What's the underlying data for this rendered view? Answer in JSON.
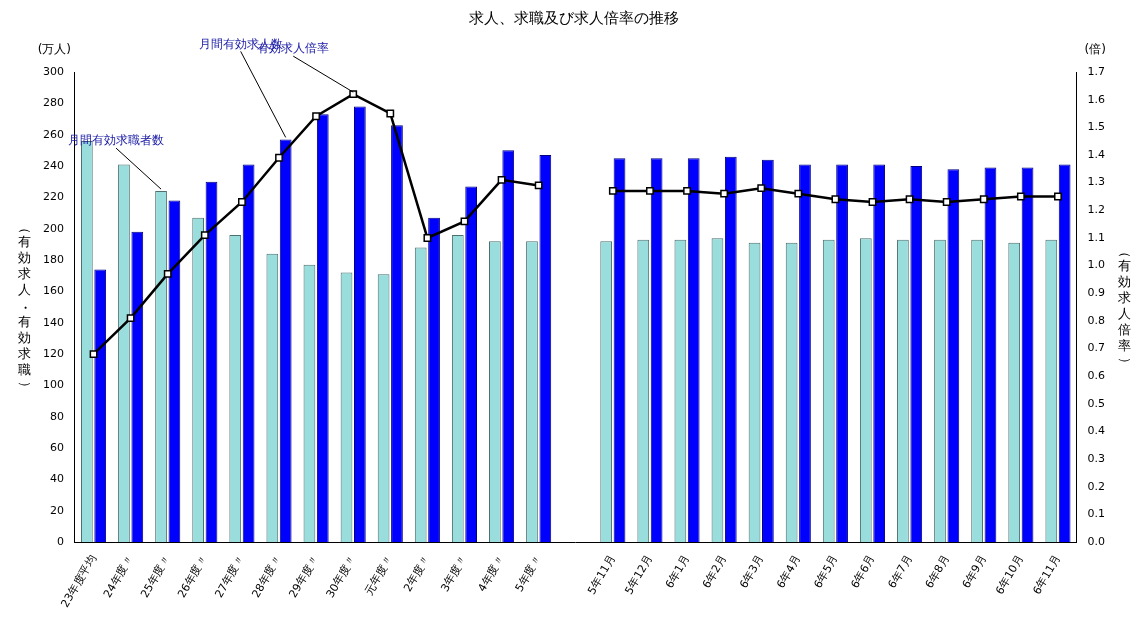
{
  "chart_data": {
    "type": "bar",
    "title": "求人、求職及び求人倍率の推移",
    "y_label": "（有効求人・有効求職）",
    "y2_label": "（有効求人倍率）",
    "annotations": [
      "(万人)",
      "(倍)"
    ],
    "categories": [
      "23年度平均",
      "24年度〃",
      "25年度〃",
      "26年度〃",
      "27年度〃",
      "28年度〃",
      "29年度〃",
      "30年度〃",
      "元年度〃",
      "2年度〃",
      "3年度〃",
      "4年度〃",
      "5年度〃",
      null,
      "5年11月",
      "5年12月",
      "6年1月",
      "6年2月",
      "6年3月",
      "6年4月",
      "6年5月",
      "6年6月",
      "6年7月",
      "6年8月",
      "6年9月",
      "6年10月",
      "6年11月"
    ],
    "series": [
      {
        "name": "月間有効求職者数",
        "type": "bar",
        "color": "#99dddd",
        "values": [
          256,
          241,
          224,
          207,
          196,
          184,
          177,
          172,
          171,
          188,
          196,
          192,
          192,
          null,
          192,
          193,
          193,
          194,
          191,
          191,
          193,
          194,
          193,
          193,
          193,
          191,
          193
        ]
      },
      {
        "name": "月間有効求人数",
        "type": "bar",
        "color": "#0000ff",
        "values": [
          174,
          198,
          218,
          230,
          241,
          257,
          273,
          278,
          266,
          207,
          227,
          250,
          247,
          null,
          245,
          245,
          245,
          246,
          244,
          241,
          241,
          241,
          240,
          238,
          239,
          239,
          241
        ]
      },
      {
        "name": "有効求人倍率",
        "type": "line",
        "axis": "y2",
        "color": "#000000",
        "marker": "square",
        "values": [
          0.68,
          0.81,
          0.97,
          1.11,
          1.23,
          1.39,
          1.54,
          1.62,
          1.55,
          1.1,
          1.16,
          1.31,
          1.29,
          null,
          1.27,
          1.27,
          1.27,
          1.26,
          1.28,
          1.26,
          1.24,
          1.23,
          1.24,
          1.23,
          1.24,
          1.25,
          1.25
        ]
      }
    ],
    "ylim": [
      0,
      300
    ],
    "yticks": [
      0,
      20,
      40,
      60,
      80,
      100,
      120,
      140,
      160,
      180,
      200,
      220,
      240,
      260,
      280,
      300
    ],
    "y2lim": [
      0,
      1.7
    ],
    "y2ticks": [
      {
        "value": 0,
        "label": "0.0"
      },
      0.1,
      0.2,
      0.3,
      0.4,
      0.5,
      0.6,
      0.7,
      0.8,
      0.9,
      {
        "value": 1,
        "label": "1.0"
      },
      1.1,
      1.2,
      1.3,
      1.4,
      1.5,
      1.6,
      1.7
    ],
    "grid": false
  }
}
